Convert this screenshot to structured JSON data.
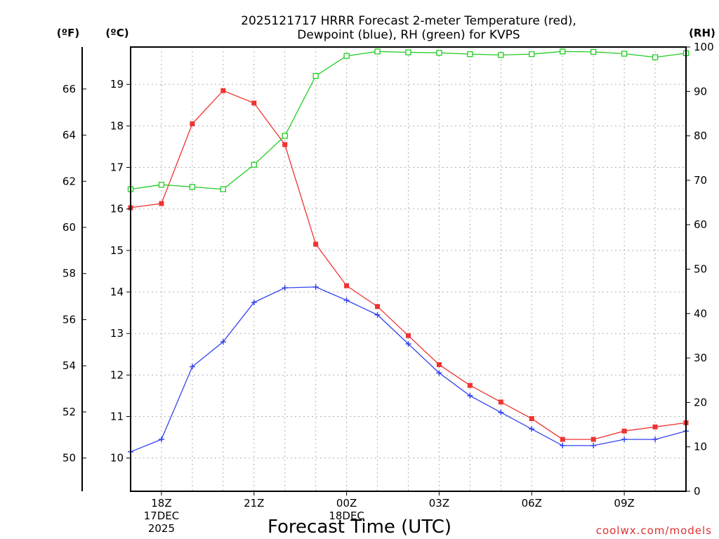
{
  "chart_data": {
    "type": "line",
    "title_lines": [
      "2025121717 HRRR Forecast 2-meter Temperature (red),",
      "Dewpoint (blue), RH (green) for KVPS"
    ],
    "xlabel": "Forecast Time (UTC)",
    "credit": "coolwx.com/models",
    "units": {
      "left_outer": "(ºF)",
      "left_inner": "(ºC)",
      "right": "(RH)"
    },
    "x": [
      17,
      18,
      19,
      20,
      21,
      22,
      23,
      24,
      25,
      26,
      27,
      28,
      29,
      30,
      31,
      32,
      33,
      34,
      35
    ],
    "xlim": [
      17,
      35
    ],
    "x_ticks": [
      {
        "x": 18,
        "lines": [
          "18Z",
          "17DEC",
          "2025"
        ]
      },
      {
        "x": 21,
        "lines": [
          "21Z"
        ]
      },
      {
        "x": 24,
        "lines": [
          "00Z",
          "18DEC"
        ]
      },
      {
        "x": 27,
        "lines": [
          "03Z"
        ]
      },
      {
        "x": 30,
        "lines": [
          "06Z"
        ]
      },
      {
        "x": 33,
        "lines": [
          "09Z"
        ]
      }
    ],
    "ylim_c": [
      9.2,
      19.9
    ],
    "y_ticks_c": [
      10,
      11,
      12,
      13,
      14,
      15,
      16,
      17,
      18,
      19
    ],
    "y_ticks_f": [
      50,
      52,
      54,
      56,
      58,
      60,
      62,
      64,
      66
    ],
    "ylim_rh": [
      0,
      100
    ],
    "y_ticks_rh": [
      0,
      10,
      20,
      30,
      40,
      50,
      60,
      70,
      80,
      90,
      100
    ],
    "grid": true,
    "series": [
      {
        "axis": "c",
        "marker": "filled-square",
        "color": "#ee3333",
        "values": [
          16.03,
          16.13,
          18.05,
          18.85,
          18.55,
          17.55,
          15.15,
          14.15,
          13.65,
          12.95,
          12.25,
          11.75,
          11.35,
          10.95,
          10.45,
          10.45,
          10.65,
          10.75,
          10.85
        ]
      },
      {
        "axis": "c",
        "marker": "plus",
        "color": "#3344ee",
        "values": [
          10.15,
          10.45,
          12.2,
          12.8,
          13.75,
          14.1,
          14.12,
          13.8,
          13.45,
          12.75,
          12.05,
          11.5,
          11.1,
          10.7,
          10.3,
          10.3,
          10.45,
          10.45,
          10.65
        ]
      },
      {
        "axis": "rh",
        "marker": "open-square",
        "color": "#22cc22",
        "values": [
          68,
          69,
          68.5,
          68,
          73.5,
          80,
          93.5,
          98,
          99,
          98.8,
          98.7,
          98.4,
          98.2,
          98.4,
          99,
          98.9,
          98.5,
          97.7,
          98.6
        ]
      }
    ]
  }
}
